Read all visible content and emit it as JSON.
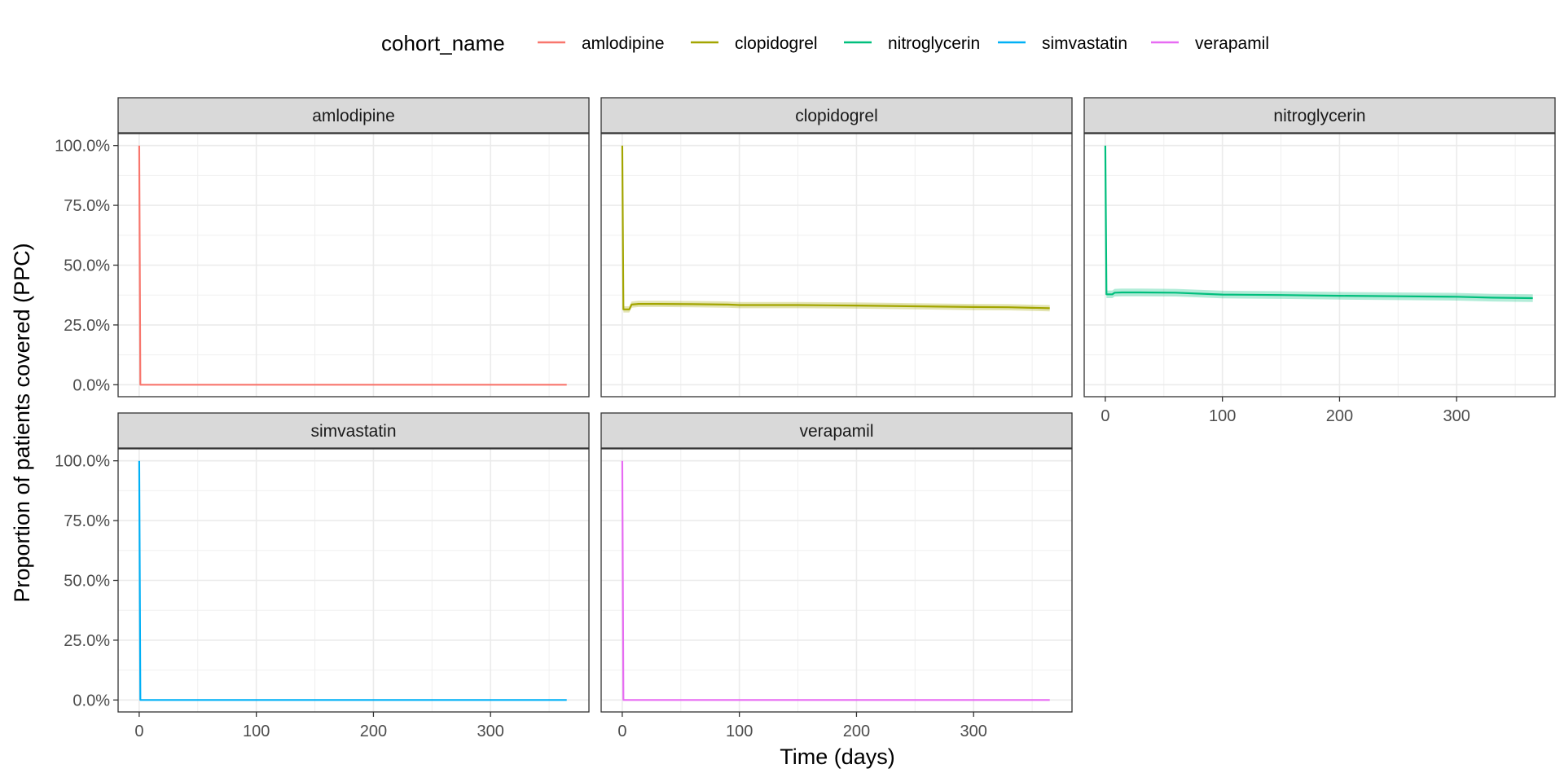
{
  "chart_data": {
    "type": "line",
    "facet_layout": "wrap",
    "ncol": 3,
    "xlabel": "Time (days)",
    "ylabel": "Proportion of patients covered (PPC)",
    "xlim": [
      -18,
      384
    ],
    "ylim": [
      -0.05,
      1.05
    ],
    "x_ticks": [
      0,
      100,
      200,
      300
    ],
    "x_tick_labels": [
      "0",
      "100",
      "200",
      "300"
    ],
    "y_ticks": [
      0,
      0.25,
      0.5,
      0.75,
      1.0
    ],
    "y_tick_labels": [
      "0.0%",
      "25.0%",
      "50.0%",
      "75.0%",
      "100.0%"
    ],
    "grid": true,
    "legend": {
      "title": "cohort_name",
      "position": "top",
      "entries": [
        "amlodipine",
        "clopidogrel",
        "nitroglycerin",
        "simvastatin",
        "verapamil"
      ]
    },
    "series": [
      {
        "name": "amlodipine",
        "color": "#F8766D",
        "x": [
          0,
          1,
          365
        ],
        "y": [
          1.0,
          0.0,
          0.0
        ],
        "ci_lower": null,
        "ci_upper": null
      },
      {
        "name": "clopidogrel",
        "color": "#A3A500",
        "x": [
          0,
          1,
          6,
          8,
          14,
          30,
          60,
          90,
          100,
          150,
          200,
          250,
          300,
          330,
          365
        ],
        "y": [
          1.0,
          0.315,
          0.315,
          0.335,
          0.338,
          0.338,
          0.337,
          0.335,
          0.333,
          0.333,
          0.331,
          0.328,
          0.325,
          0.324,
          0.32
        ],
        "ci_lower": [
          null,
          0.302,
          0.302,
          0.322,
          0.325,
          0.325,
          0.324,
          0.322,
          0.32,
          0.32,
          0.318,
          0.315,
          0.312,
          0.311,
          0.307
        ],
        "ci_upper": [
          null,
          0.328,
          0.328,
          0.348,
          0.351,
          0.351,
          0.35,
          0.348,
          0.346,
          0.346,
          0.344,
          0.341,
          0.338,
          0.337,
          0.333
        ]
      },
      {
        "name": "nitroglycerin",
        "color": "#00BF7D",
        "x": [
          0,
          1,
          6,
          8,
          14,
          30,
          60,
          100,
          150,
          200,
          250,
          300,
          330,
          365
        ],
        "y": [
          1.0,
          0.378,
          0.378,
          0.385,
          0.386,
          0.386,
          0.385,
          0.377,
          0.375,
          0.372,
          0.37,
          0.368,
          0.364,
          0.362
        ],
        "ci_lower": [
          null,
          0.362,
          0.362,
          0.369,
          0.37,
          0.37,
          0.369,
          0.361,
          0.359,
          0.356,
          0.354,
          0.352,
          0.348,
          0.346
        ],
        "ci_upper": [
          null,
          0.394,
          0.394,
          0.401,
          0.402,
          0.402,
          0.401,
          0.393,
          0.391,
          0.388,
          0.386,
          0.384,
          0.38,
          0.378
        ]
      },
      {
        "name": "simvastatin",
        "color": "#00B0F6",
        "x": [
          0,
          1,
          365
        ],
        "y": [
          1.0,
          0.0,
          0.0
        ],
        "ci_lower": null,
        "ci_upper": null
      },
      {
        "name": "verapamil",
        "color": "#E76BF3",
        "x": [
          0,
          1,
          365
        ],
        "y": [
          1.0,
          0.0,
          0.0
        ],
        "ci_lower": null,
        "ci_upper": null
      }
    ]
  }
}
